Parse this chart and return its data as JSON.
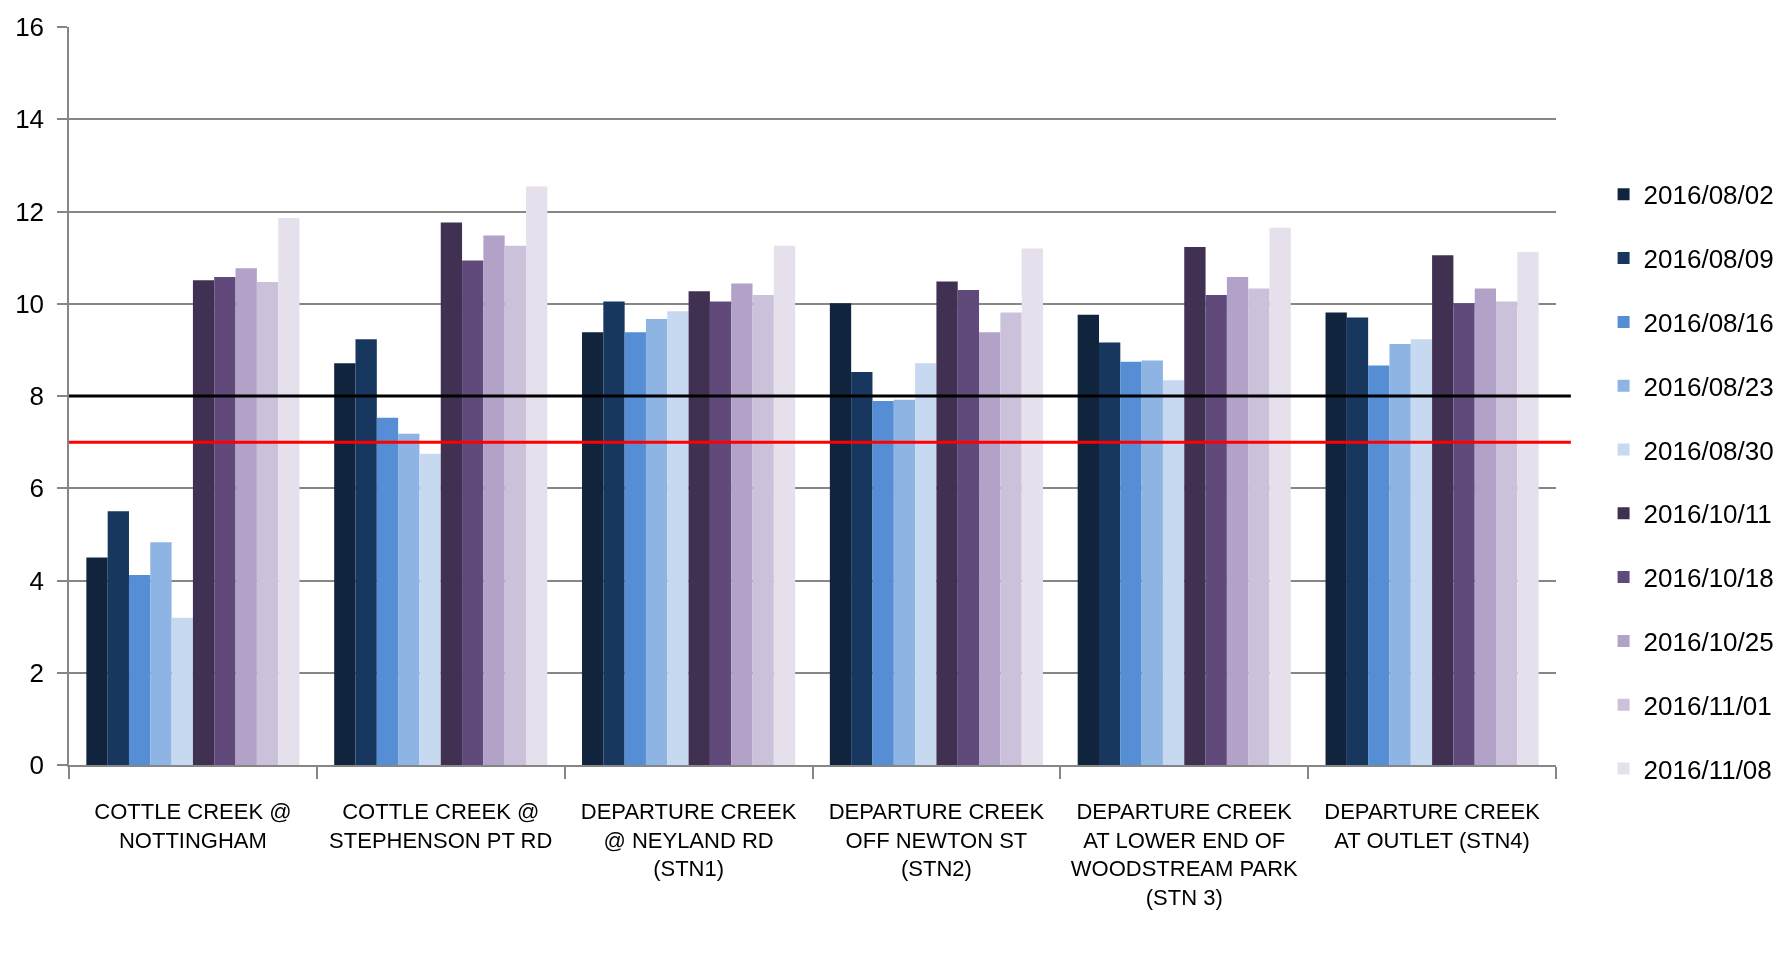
{
  "chart_data": {
    "type": "bar",
    "categories": [
      "COTTLE CREEK @ NOTTINGHAM",
      "COTTLE CREEK @ STEPHENSON PT RD",
      "DEPARTURE CREEK @ NEYLAND RD (STN1)",
      "DEPARTURE CREEK OFF NEWTON ST (STN2)",
      "DEPARTURE CREEK AT LOWER END OF WOODSTREAM PARK (STN 3)",
      "DEPARTURE CREEK AT OUTLET (STN4)"
    ],
    "series": [
      {
        "name": "2016/08/02",
        "color": "#10243e",
        "values": [
          4.5,
          8.71,
          9.38,
          10.01,
          9.76,
          9.81
        ]
      },
      {
        "name": "2016/08/09",
        "color": "#17375e",
        "values": [
          5.5,
          9.23,
          10.05,
          8.52,
          9.16,
          9.7
        ]
      },
      {
        "name": "2016/08/16",
        "color": "#558ed5",
        "values": [
          4.12,
          7.53,
          9.38,
          7.89,
          8.74,
          8.66
        ]
      },
      {
        "name": "2016/08/23",
        "color": "#8eb4e3",
        "values": [
          4.83,
          7.18,
          9.67,
          7.92,
          8.77,
          9.13
        ]
      },
      {
        "name": "2016/08/30",
        "color": "#c6d9f1",
        "values": [
          3.19,
          6.75,
          9.84,
          8.71,
          8.34,
          9.23
        ]
      },
      {
        "name": "2016/10/11",
        "color": "#403152",
        "values": [
          10.51,
          11.76,
          10.27,
          10.48,
          11.23,
          11.05
        ]
      },
      {
        "name": "2016/10/18",
        "color": "#604a7b",
        "values": [
          10.58,
          10.94,
          10.05,
          10.3,
          10.19,
          10.01
        ]
      },
      {
        "name": "2016/10/25",
        "color": "#b3a2c7",
        "values": [
          10.77,
          11.48,
          10.44,
          9.38,
          10.58,
          10.33
        ]
      },
      {
        "name": "2016/11/01",
        "color": "#ccc1da",
        "values": [
          10.47,
          11.26,
          10.19,
          9.81,
          10.33,
          10.05
        ]
      },
      {
        "name": "2016/11/08",
        "color": "#e6e0ec",
        "values": [
          11.86,
          12.54,
          11.26,
          11.2,
          11.65,
          11.12
        ]
      }
    ],
    "ylim": [
      0,
      16
    ],
    "yticks": [
      0,
      2,
      4,
      6,
      8,
      10,
      12,
      14,
      16
    ],
    "grid": "y",
    "legend": "right",
    "ref_lines": [
      {
        "axis": "y",
        "value": 8,
        "color": "#000000"
      },
      {
        "axis": "y",
        "value": 7,
        "color": "#ff0000"
      }
    ]
  }
}
